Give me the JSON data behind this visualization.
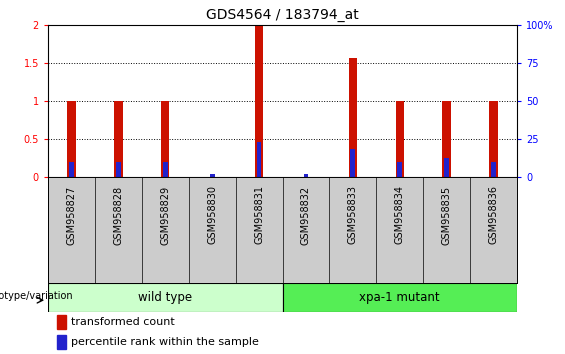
{
  "title": "GDS4564 / 183794_at",
  "samples": [
    "GSM958827",
    "GSM958828",
    "GSM958829",
    "GSM958830",
    "GSM958831",
    "GSM958832",
    "GSM958833",
    "GSM958834",
    "GSM958835",
    "GSM958836"
  ],
  "red_values": [
    1.0,
    1.0,
    1.0,
    0.0,
    2.0,
    0.0,
    1.57,
    1.0,
    1.0,
    1.0
  ],
  "blue_values": [
    0.2,
    0.2,
    0.2,
    0.04,
    0.46,
    0.04,
    0.37,
    0.2,
    0.25,
    0.2
  ],
  "red_color": "#cc1100",
  "blue_color": "#2222cc",
  "ylim_left": [
    0,
    2
  ],
  "ylim_right": [
    0,
    100
  ],
  "yticks_left": [
    0,
    0.5,
    1.0,
    1.5,
    2.0
  ],
  "yticks_right": [
    0,
    25,
    50,
    75,
    100
  ],
  "groups": [
    {
      "label": "wild type",
      "start": 0,
      "end": 5,
      "color": "#ccffcc"
    },
    {
      "label": "xpa-1 mutant",
      "start": 5,
      "end": 10,
      "color": "#55ee55"
    }
  ],
  "genotype_label": "genotype/variation",
  "legend_red": "transformed count",
  "legend_blue": "percentile rank within the sample",
  "red_bar_width": 0.18,
  "blue_bar_width": 0.1,
  "title_fontsize": 10,
  "tick_fontsize": 7,
  "label_fontsize": 8,
  "group_label_fontsize": 8.5,
  "legend_fontsize": 8
}
